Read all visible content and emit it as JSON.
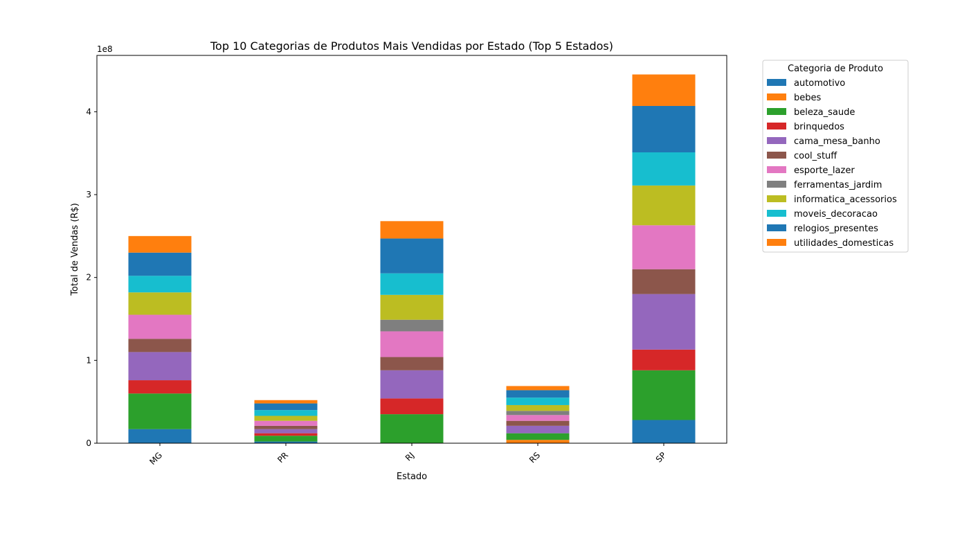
{
  "chart_data": {
    "type": "bar",
    "stacked": true,
    "title": "Top 10 Categorias de Produtos Mais Vendidas por Estado (Top 5 Estados)",
    "xlabel": "Estado",
    "ylabel": "Total de Vendas (R$)",
    "y_offset_label": "1e8",
    "y_ticks": [
      "0",
      "1",
      "2",
      "3",
      "4"
    ],
    "ylim": [
      0,
      4.68
    ],
    "y_unit_scale": "1e8",
    "categories": [
      "MG",
      "PR",
      "RJ",
      "RS",
      "SP"
    ],
    "grid": false,
    "legend": {
      "title": "Categoria de Produto",
      "position": "outside-right"
    },
    "series": [
      {
        "name": "automotivo",
        "color": "#1f77b4",
        "values": [
          0.17,
          0.02,
          0.0,
          0.0,
          0.28
        ]
      },
      {
        "name": "bebes",
        "color": "#ff7f0e",
        "values": [
          0.0,
          0.0,
          0.0,
          0.04,
          0.0
        ]
      },
      {
        "name": "beleza_saude",
        "color": "#2ca02c",
        "values": [
          0.43,
          0.07,
          0.35,
          0.08,
          0.6
        ]
      },
      {
        "name": "brinquedos",
        "color": "#d62728",
        "values": [
          0.16,
          0.03,
          0.19,
          0.0,
          0.25
        ]
      },
      {
        "name": "cama_mesa_banho",
        "color": "#9467bd",
        "values": [
          0.34,
          0.05,
          0.34,
          0.09,
          0.67
        ]
      },
      {
        "name": "cool_stuff",
        "color": "#8c564b",
        "values": [
          0.16,
          0.04,
          0.16,
          0.06,
          0.3
        ]
      },
      {
        "name": "esporte_lazer",
        "color": "#e377c2",
        "values": [
          0.29,
          0.06,
          0.31,
          0.07,
          0.53
        ]
      },
      {
        "name": "ferramentas_jardim",
        "color": "#7f7f7f",
        "values": [
          0.0,
          0.0,
          0.14,
          0.05,
          0.0
        ]
      },
      {
        "name": "informatica_acessorios",
        "color": "#bcbd22",
        "values": [
          0.27,
          0.06,
          0.3,
          0.07,
          0.48
        ]
      },
      {
        "name": "moveis_decoracao",
        "color": "#17becf",
        "values": [
          0.2,
          0.07,
          0.26,
          0.09,
          0.4
        ]
      },
      {
        "name": "relogios_presentes",
        "color": "#1f77b4",
        "values": [
          0.28,
          0.08,
          0.42,
          0.09,
          0.56
        ]
      },
      {
        "name": "utilidades_domesticas",
        "color": "#ff7f0e",
        "values": [
          0.2,
          0.04,
          0.21,
          0.05,
          0.38
        ]
      }
    ]
  }
}
